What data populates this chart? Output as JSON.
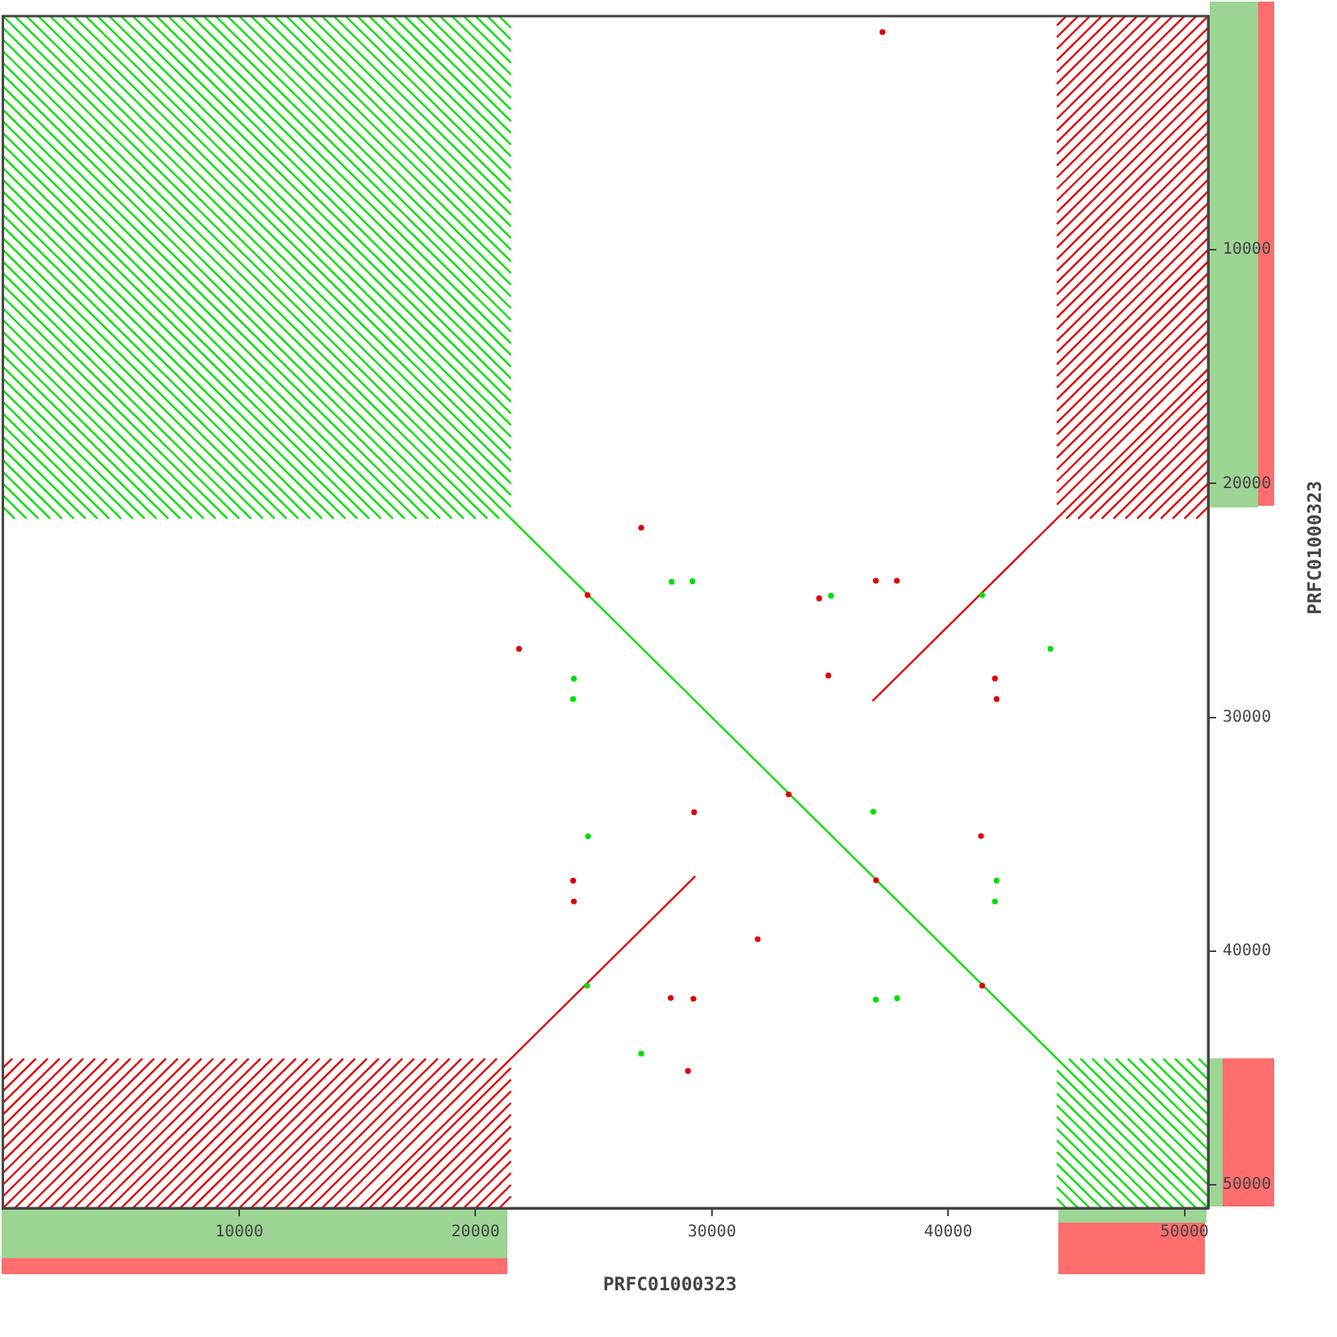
{
  "chart_data": {
    "type": "line",
    "xlabel": "PRFC01000323",
    "ylabel": "PRFC01000323",
    "xlim": [
      0,
      51000
    ],
    "ylim": [
      51000,
      0
    ],
    "xticks": [
      10000,
      20000,
      30000,
      40000,
      50000
    ],
    "yticks": [
      10000,
      20000,
      30000,
      40000,
      50000
    ],
    "series": [
      {
        "type": "scatter",
        "marker": "circle",
        "color": "#00e000",
        "x": [
          28300,
          29180,
          35040,
          41440,
          44330,
          24160,
          24130,
          36830,
          24760,
          42050,
          41980,
          24720,
          36940,
          37840,
          27010
        ],
        "values": [
          24200,
          24180,
          24800,
          24770,
          27070,
          28350,
          29220,
          34040,
          35090,
          36990,
          37880,
          41480,
          42080,
          42020,
          44390
        ]
      },
      {
        "type": "scatter",
        "marker": "circle",
        "color": "#e00000",
        "x": [
          27010,
          24740,
          34540,
          36940,
          37830,
          21840,
          34930,
          41980,
          42050,
          33250,
          29250,
          41390,
          24130,
          24160,
          36950,
          31940,
          41440,
          28260,
          29220,
          28990,
          37220
        ],
        "values": [
          21890,
          24770,
          24910,
          24160,
          24160,
          27070,
          28210,
          28340,
          29220,
          33300,
          34060,
          35080,
          36990,
          37880,
          36970,
          39490,
          41480,
          42010,
          42040,
          45130,
          680
        ]
      },
      {
        "color": "#00e000",
        "x": [
          0,
          51000
        ],
        "values": [
          0,
          51000
        ]
      },
      {
        "color": "#e00000",
        "x": [
          15100,
          29300
        ],
        "values": [
          51000,
          36800
        ]
      },
      {
        "color": "#e00000",
        "x": [
          36800,
          51000
        ],
        "values": [
          29300,
          15100
        ]
      },
      {
        "color": "#00e000",
        "x": [
          21000,
          21500
        ],
        "values": [
          0,
          500
        ]
      },
      {
        "color": "#00e000",
        "x": [
          20500,
          21500
        ],
        "values": [
          0,
          1000
        ]
      },
      {
        "color": "#00e000",
        "x": [
          20000,
          21500
        ],
        "values": [
          0,
          1500
        ]
      },
      {
        "color": "#00e000",
        "x": [
          19500,
          21500
        ],
        "values": [
          0,
          2000
        ]
      },
      {
        "color": "#00e000",
        "x": [
          19000,
          21500
        ],
        "values": [
          0,
          2500
        ]
      },
      {
        "color": "#00e000",
        "x": [
          18500,
          21500
        ],
        "values": [
          0,
          3000
        ]
      },
      {
        "color": "#00e000",
        "x": [
          18000,
          21500
        ],
        "values": [
          0,
          3500
        ]
      },
      {
        "color": "#00e000",
        "x": [
          17500,
          21500
        ],
        "values": [
          0,
          4000
        ]
      },
      {
        "color": "#00e000",
        "x": [
          17000,
          21500
        ],
        "values": [
          0,
          4500
        ]
      },
      {
        "color": "#00e000",
        "x": [
          16500,
          21500
        ],
        "values": [
          0,
          5000
        ]
      },
      {
        "color": "#00e000",
        "x": [
          16000,
          21500
        ],
        "values": [
          0,
          5500
        ]
      },
      {
        "color": "#00e000",
        "x": [
          15500,
          21500
        ],
        "values": [
          0,
          6000
        ]
      },
      {
        "color": "#00e000",
        "x": [
          15000,
          21500
        ],
        "values": [
          0,
          6500
        ]
      },
      {
        "color": "#00e000",
        "x": [
          14500,
          21500
        ],
        "values": [
          0,
          7000
        ]
      },
      {
        "color": "#00e000",
        "x": [
          14000,
          21500
        ],
        "values": [
          0,
          7500
        ]
      },
      {
        "color": "#00e000",
        "x": [
          13500,
          21500
        ],
        "values": [
          0,
          8000
        ]
      },
      {
        "color": "#00e000",
        "x": [
          13000,
          21500
        ],
        "values": [
          0,
          8500
        ]
      },
      {
        "color": "#00e000",
        "x": [
          12500,
          21500
        ],
        "values": [
          0,
          9000
        ]
      },
      {
        "color": "#00e000",
        "x": [
          12000,
          21500
        ],
        "values": [
          0,
          9500
        ]
      },
      {
        "color": "#00e000",
        "x": [
          11500,
          21500
        ],
        "values": [
          0,
          10000
        ]
      },
      {
        "color": "#00e000",
        "x": [
          11000,
          21500
        ],
        "values": [
          0,
          10500
        ]
      },
      {
        "color": "#00e000",
        "x": [
          10500,
          21500
        ],
        "values": [
          0,
          11000
        ]
      },
      {
        "color": "#00e000",
        "x": [
          10000,
          21500
        ],
        "values": [
          0,
          11500
        ]
      },
      {
        "color": "#00e000",
        "x": [
          9500,
          21500
        ],
        "values": [
          0,
          12000
        ]
      },
      {
        "color": "#00e000",
        "x": [
          9000,
          21500
        ],
        "values": [
          0,
          12500
        ]
      },
      {
        "color": "#00e000",
        "x": [
          8500,
          21500
        ],
        "values": [
          0,
          13000
        ]
      },
      {
        "color": "#00e000",
        "x": [
          8000,
          21500
        ],
        "values": [
          0,
          13500
        ]
      },
      {
        "color": "#00e000",
        "x": [
          7500,
          21500
        ],
        "values": [
          0,
          14000
        ]
      },
      {
        "color": "#00e000",
        "x": [
          7000,
          21500
        ],
        "values": [
          0,
          14500
        ]
      },
      {
        "color": "#00e000",
        "x": [
          6500,
          21500
        ],
        "values": [
          0,
          15000
        ]
      },
      {
        "color": "#00e000",
        "x": [
          6000,
          21500
        ],
        "values": [
          0,
          15500
        ]
      },
      {
        "color": "#00e000",
        "x": [
          5500,
          21500
        ],
        "values": [
          0,
          16000
        ]
      },
      {
        "color": "#00e000",
        "x": [
          5000,
          21500
        ],
        "values": [
          0,
          16500
        ]
      },
      {
        "color": "#00e000",
        "x": [
          4500,
          21500
        ],
        "values": [
          0,
          17000
        ]
      },
      {
        "color": "#00e000",
        "x": [
          4000,
          21500
        ],
        "values": [
          0,
          17500
        ]
      },
      {
        "color": "#00e000",
        "x": [
          3500,
          21500
        ],
        "values": [
          0,
          18000
        ]
      },
      {
        "color": "#00e000",
        "x": [
          3000,
          21500
        ],
        "values": [
          0,
          18500
        ]
      },
      {
        "color": "#00e000",
        "x": [
          2500,
          21500
        ],
        "values": [
          0,
          19000
        ]
      },
      {
        "color": "#00e000",
        "x": [
          2000,
          21500
        ],
        "values": [
          0,
          19500
        ]
      },
      {
        "color": "#00e000",
        "x": [
          1500,
          21500
        ],
        "values": [
          0,
          20000
        ]
      },
      {
        "color": "#00e000",
        "x": [
          1000,
          21500
        ],
        "values": [
          0,
          20500
        ]
      },
      {
        "color": "#00e000",
        "x": [
          500,
          21500
        ],
        "values": [
          0,
          21000
        ]
      },
      {
        "color": "#00e000",
        "x": [
          0,
          21000
        ],
        "values": [
          500,
          21500
        ]
      },
      {
        "color": "#00e000",
        "x": [
          0,
          20500
        ],
        "values": [
          1000,
          21500
        ]
      },
      {
        "color": "#00e000",
        "x": [
          0,
          20000
        ],
        "values": [
          1500,
          21500
        ]
      },
      {
        "color": "#00e000",
        "x": [
          0,
          19500
        ],
        "values": [
          2000,
          21500
        ]
      },
      {
        "color": "#00e000",
        "x": [
          0,
          19000
        ],
        "values": [
          2500,
          21500
        ]
      },
      {
        "color": "#00e000",
        "x": [
          0,
          18500
        ],
        "values": [
          3000,
          21500
        ]
      },
      {
        "color": "#00e000",
        "x": [
          0,
          18000
        ],
        "values": [
          3500,
          21500
        ]
      },
      {
        "color": "#00e000",
        "x": [
          0,
          17500
        ],
        "values": [
          4000,
          21500
        ]
      },
      {
        "color": "#00e000",
        "x": [
          0,
          17000
        ],
        "values": [
          4500,
          21500
        ]
      },
      {
        "color": "#00e000",
        "x": [
          0,
          16500
        ],
        "values": [
          5000,
          21500
        ]
      },
      {
        "color": "#00e000",
        "x": [
          0,
          16000
        ],
        "values": [
          5500,
          21500
        ]
      },
      {
        "color": "#00e000",
        "x": [
          0,
          15500
        ],
        "values": [
          6000,
          21500
        ]
      },
      {
        "color": "#00e000",
        "x": [
          0,
          15000
        ],
        "values": [
          6500,
          21500
        ]
      },
      {
        "color": "#00e000",
        "x": [
          0,
          14500
        ],
        "values": [
          7000,
          21500
        ]
      },
      {
        "color": "#00e000",
        "x": [
          0,
          14000
        ],
        "values": [
          7500,
          21500
        ]
      },
      {
        "color": "#00e000",
        "x": [
          0,
          13500
        ],
        "values": [
          8000,
          21500
        ]
      },
      {
        "color": "#00e000",
        "x": [
          0,
          13000
        ],
        "values": [
          8500,
          21500
        ]
      },
      {
        "color": "#00e000",
        "x": [
          0,
          12500
        ],
        "values": [
          9000,
          21500
        ]
      },
      {
        "color": "#00e000",
        "x": [
          0,
          12000
        ],
        "values": [
          9500,
          21500
        ]
      },
      {
        "color": "#00e000",
        "x": [
          0,
          11500
        ],
        "values": [
          10000,
          21500
        ]
      },
      {
        "color": "#00e000",
        "x": [
          0,
          11000
        ],
        "values": [
          10500,
          21500
        ]
      },
      {
        "color": "#00e000",
        "x": [
          0,
          10500
        ],
        "values": [
          11000,
          21500
        ]
      },
      {
        "color": "#00e000",
        "x": [
          0,
          10000
        ],
        "values": [
          11500,
          21500
        ]
      },
      {
        "color": "#00e000",
        "x": [
          0,
          9500
        ],
        "values": [
          12000,
          21500
        ]
      },
      {
        "color": "#00e000",
        "x": [
          0,
          9000
        ],
        "values": [
          12500,
          21500
        ]
      },
      {
        "color": "#00e000",
        "x": [
          0,
          8500
        ],
        "values": [
          13000,
          21500
        ]
      },
      {
        "color": "#00e000",
        "x": [
          0,
          8000
        ],
        "values": [
          13500,
          21500
        ]
      },
      {
        "color": "#00e000",
        "x": [
          0,
          7500
        ],
        "values": [
          14000,
          21500
        ]
      },
      {
        "color": "#00e000",
        "x": [
          0,
          7000
        ],
        "values": [
          14500,
          21500
        ]
      },
      {
        "color": "#00e000",
        "x": [
          0,
          6500
        ],
        "values": [
          15000,
          21500
        ]
      },
      {
        "color": "#00e000",
        "x": [
          0,
          6000
        ],
        "values": [
          15500,
          21500
        ]
      },
      {
        "color": "#00e000",
        "x": [
          0,
          5500
        ],
        "values": [
          16000,
          21500
        ]
      },
      {
        "color": "#00e000",
        "x": [
          0,
          5000
        ],
        "values": [
          16500,
          21500
        ]
      },
      {
        "color": "#00e000",
        "x": [
          0,
          4500
        ],
        "values": [
          17000,
          21500
        ]
      },
      {
        "color": "#00e000",
        "x": [
          0,
          4000
        ],
        "values": [
          17500,
          21500
        ]
      },
      {
        "color": "#00e000",
        "x": [
          0,
          3500
        ],
        "values": [
          18000,
          21500
        ]
      },
      {
        "color": "#00e000",
        "x": [
          0,
          3000
        ],
        "values": [
          18500,
          21500
        ]
      },
      {
        "color": "#00e000",
        "x": [
          0,
          2500
        ],
        "values": [
          19000,
          21500
        ]
      },
      {
        "color": "#00e000",
        "x": [
          0,
          2000
        ],
        "values": [
          19500,
          21500
        ]
      },
      {
        "color": "#00e000",
        "x": [
          0,
          1500
        ],
        "values": [
          20000,
          21500
        ]
      },
      {
        "color": "#00e000",
        "x": [
          0,
          1000
        ],
        "values": [
          20500,
          21500
        ]
      },
      {
        "color": "#00e000",
        "x": [
          0,
          500
        ],
        "values": [
          21000,
          21500
        ]
      },
      {
        "color": "#00e000",
        "x": [
          50600,
          51000
        ],
        "values": [
          44600,
          45000
        ]
      },
      {
        "color": "#00e000",
        "x": [
          50100,
          51000
        ],
        "values": [
          44600,
          45500
        ]
      },
      {
        "color": "#00e000",
        "x": [
          49600,
          51000
        ],
        "values": [
          44600,
          46000
        ]
      },
      {
        "color": "#00e000",
        "x": [
          49100,
          51000
        ],
        "values": [
          44600,
          46500
        ]
      },
      {
        "color": "#00e000",
        "x": [
          48600,
          51000
        ],
        "values": [
          44600,
          47000
        ]
      },
      {
        "color": "#00e000",
        "x": [
          48100,
          51000
        ],
        "values": [
          44600,
          47500
        ]
      },
      {
        "color": "#00e000",
        "x": [
          47600,
          51000
        ],
        "values": [
          44600,
          48000
        ]
      },
      {
        "color": "#00e000",
        "x": [
          47100,
          51000
        ],
        "values": [
          44600,
          48500
        ]
      },
      {
        "color": "#00e000",
        "x": [
          46600,
          51000
        ],
        "values": [
          44600,
          49000
        ]
      },
      {
        "color": "#00e000",
        "x": [
          46100,
          51000
        ],
        "values": [
          44600,
          49500
        ]
      },
      {
        "color": "#00e000",
        "x": [
          45600,
          51000
        ],
        "values": [
          44600,
          50000
        ]
      },
      {
        "color": "#00e000",
        "x": [
          45100,
          51000
        ],
        "values": [
          44600,
          50500
        ]
      },
      {
        "color": "#00e000",
        "x": [
          44600,
          50500
        ],
        "values": [
          45100,
          51000
        ]
      },
      {
        "color": "#00e000",
        "x": [
          44600,
          50000
        ],
        "values": [
          45600,
          51000
        ]
      },
      {
        "color": "#00e000",
        "x": [
          44600,
          49500
        ],
        "values": [
          46100,
          51000
        ]
      },
      {
        "color": "#00e000",
        "x": [
          44600,
          49000
        ],
        "values": [
          46600,
          51000
        ]
      },
      {
        "color": "#00e000",
        "x": [
          44600,
          48500
        ],
        "values": [
          47100,
          51000
        ]
      },
      {
        "color": "#00e000",
        "x": [
          44600,
          48000
        ],
        "values": [
          47600,
          51000
        ]
      },
      {
        "color": "#00e000",
        "x": [
          44600,
          47500
        ],
        "values": [
          48100,
          51000
        ]
      },
      {
        "color": "#00e000",
        "x": [
          44600,
          47000
        ],
        "values": [
          48600,
          51000
        ]
      },
      {
        "color": "#00e000",
        "x": [
          44600,
          46500
        ],
        "values": [
          49100,
          51000
        ]
      },
      {
        "color": "#00e000",
        "x": [
          44600,
          46000
        ],
        "values": [
          49600,
          51000
        ]
      },
      {
        "color": "#00e000",
        "x": [
          44600,
          45500
        ],
        "values": [
          50100,
          51000
        ]
      },
      {
        "color": "#00e000",
        "x": [
          44600,
          45000
        ],
        "values": [
          50600,
          51000
        ]
      },
      {
        "color": "#e00000",
        "x": [
          44600,
          45000
        ],
        "values": [
          400,
          0
        ]
      },
      {
        "color": "#e00000",
        "x": [
          44600,
          45500
        ],
        "values": [
          900,
          0
        ]
      },
      {
        "color": "#e00000",
        "x": [
          44600,
          46000
        ],
        "values": [
          1400,
          0
        ]
      },
      {
        "color": "#e00000",
        "x": [
          44600,
          46500
        ],
        "values": [
          1900,
          0
        ]
      },
      {
        "color": "#e00000",
        "x": [
          44600,
          47000
        ],
        "values": [
          2400,
          0
        ]
      },
      {
        "color": "#e00000",
        "x": [
          44600,
          47500
        ],
        "values": [
          2900,
          0
        ]
      },
      {
        "color": "#e00000",
        "x": [
          44600,
          48000
        ],
        "values": [
          3400,
          0
        ]
      },
      {
        "color": "#e00000",
        "x": [
          44600,
          48500
        ],
        "values": [
          3900,
          0
        ]
      },
      {
        "color": "#e00000",
        "x": [
          44600,
          49000
        ],
        "values": [
          4400,
          0
        ]
      },
      {
        "color": "#e00000",
        "x": [
          44600,
          49500
        ],
        "values": [
          4900,
          0
        ]
      },
      {
        "color": "#e00000",
        "x": [
          44600,
          50000
        ],
        "values": [
          5400,
          0
        ]
      },
      {
        "color": "#e00000",
        "x": [
          44600,
          50500
        ],
        "values": [
          5900,
          0
        ]
      },
      {
        "color": "#e00000",
        "x": [
          44600,
          51000
        ],
        "values": [
          6400,
          0
        ]
      },
      {
        "color": "#e00000",
        "x": [
          44600,
          51000
        ],
        "values": [
          6900,
          500
        ]
      },
      {
        "color": "#e00000",
        "x": [
          44600,
          51000
        ],
        "values": [
          7400,
          1000
        ]
      },
      {
        "color": "#e00000",
        "x": [
          44600,
          51000
        ],
        "values": [
          7900,
          1500
        ]
      },
      {
        "color": "#e00000",
        "x": [
          44600,
          51000
        ],
        "values": [
          8400,
          2000
        ]
      },
      {
        "color": "#e00000",
        "x": [
          44600,
          51000
        ],
        "values": [
          8900,
          2500
        ]
      },
      {
        "color": "#e00000",
        "x": [
          44600,
          51000
        ],
        "values": [
          9400,
          3000
        ]
      },
      {
        "color": "#e00000",
        "x": [
          44600,
          51000
        ],
        "values": [
          9900,
          3500
        ]
      },
      {
        "color": "#e00000",
        "x": [
          44600,
          51000
        ],
        "values": [
          10400,
          4000
        ]
      },
      {
        "color": "#e00000",
        "x": [
          44600,
          51000
        ],
        "values": [
          10900,
          4500
        ]
      },
      {
        "color": "#e00000",
        "x": [
          44600,
          51000
        ],
        "values": [
          11400,
          5000
        ]
      },
      {
        "color": "#e00000",
        "x": [
          44600,
          51000
        ],
        "values": [
          11900,
          5500
        ]
      },
      {
        "color": "#e00000",
        "x": [
          44600,
          51000
        ],
        "values": [
          12400,
          6000
        ]
      },
      {
        "color": "#e00000",
        "x": [
          44600,
          51000
        ],
        "values": [
          12900,
          6500
        ]
      },
      {
        "color": "#e00000",
        "x": [
          44600,
          51000
        ],
        "values": [
          13400,
          7000
        ]
      },
      {
        "color": "#e00000",
        "x": [
          44600,
          51000
        ],
        "values": [
          13900,
          7500
        ]
      },
      {
        "color": "#e00000",
        "x": [
          44600,
          51000
        ],
        "values": [
          14400,
          8000
        ]
      },
      {
        "color": "#e00000",
        "x": [
          44600,
          51000
        ],
        "values": [
          14900,
          8500
        ]
      },
      {
        "color": "#e00000",
        "x": [
          44600,
          51000
        ],
        "values": [
          15400,
          9000
        ]
      },
      {
        "color": "#e00000",
        "x": [
          44600,
          51000
        ],
        "values": [
          15900,
          9500
        ]
      },
      {
        "color": "#e00000",
        "x": [
          44600,
          51000
        ],
        "values": [
          16400,
          10000
        ]
      },
      {
        "color": "#e00000",
        "x": [
          44600,
          51000
        ],
        "values": [
          16900,
          10500
        ]
      },
      {
        "color": "#e00000",
        "x": [
          44600,
          51000
        ],
        "values": [
          17400,
          11000
        ]
      },
      {
        "color": "#e00000",
        "x": [
          44600,
          51000
        ],
        "values": [
          17900,
          11500
        ]
      },
      {
        "color": "#e00000",
        "x": [
          44600,
          51000
        ],
        "values": [
          18400,
          12000
        ]
      },
      {
        "color": "#e00000",
        "x": [
          44600,
          51000
        ],
        "values": [
          18900,
          12500
        ]
      },
      {
        "color": "#e00000",
        "x": [
          44600,
          51000
        ],
        "values": [
          19400,
          13000
        ]
      },
      {
        "color": "#e00000",
        "x": [
          44600,
          51000
        ],
        "values": [
          19900,
          13500
        ]
      },
      {
        "color": "#e00000",
        "x": [
          44600,
          51000
        ],
        "values": [
          20400,
          14000
        ]
      },
      {
        "color": "#e00000",
        "x": [
          44600,
          51000
        ],
        "values": [
          20900,
          14500
        ]
      },
      {
        "color": "#e00000",
        "x": [
          45000,
          51000
        ],
        "values": [
          21500,
          15500
        ]
      },
      {
        "color": "#e00000",
        "x": [
          45500,
          51000
        ],
        "values": [
          21500,
          16000
        ]
      },
      {
        "color": "#e00000",
        "x": [
          46000,
          51000
        ],
        "values": [
          21500,
          16500
        ]
      },
      {
        "color": "#e00000",
        "x": [
          46500,
          51000
        ],
        "values": [
          21500,
          17000
        ]
      },
      {
        "color": "#e00000",
        "x": [
          47000,
          51000
        ],
        "values": [
          21500,
          17500
        ]
      },
      {
        "color": "#e00000",
        "x": [
          47500,
          51000
        ],
        "values": [
          21500,
          18000
        ]
      },
      {
        "color": "#e00000",
        "x": [
          48000,
          51000
        ],
        "values": [
          21500,
          18500
        ]
      },
      {
        "color": "#e00000",
        "x": [
          48500,
          51000
        ],
        "values": [
          21500,
          19000
        ]
      },
      {
        "color": "#e00000",
        "x": [
          49000,
          51000
        ],
        "values": [
          21500,
          19500
        ]
      },
      {
        "color": "#e00000",
        "x": [
          49500,
          51000
        ],
        "values": [
          21500,
          20000
        ]
      },
      {
        "color": "#e00000",
        "x": [
          50000,
          51000
        ],
        "values": [
          21500,
          20500
        ]
      },
      {
        "color": "#e00000",
        "x": [
          50500,
          51000
        ],
        "values": [
          21500,
          21000
        ]
      },
      {
        "color": "#e00000",
        "x": [
          0,
          400
        ],
        "values": [
          45000,
          44600
        ]
      },
      {
        "color": "#e00000",
        "x": [
          0,
          900
        ],
        "values": [
          45500,
          44600
        ]
      },
      {
        "color": "#e00000",
        "x": [
          0,
          1400
        ],
        "values": [
          46000,
          44600
        ]
      },
      {
        "color": "#e00000",
        "x": [
          0,
          1900
        ],
        "values": [
          46500,
          44600
        ]
      },
      {
        "color": "#e00000",
        "x": [
          0,
          2400
        ],
        "values": [
          47000,
          44600
        ]
      },
      {
        "color": "#e00000",
        "x": [
          0,
          2900
        ],
        "values": [
          47500,
          44600
        ]
      },
      {
        "color": "#e00000",
        "x": [
          0,
          3400
        ],
        "values": [
          48000,
          44600
        ]
      },
      {
        "color": "#e00000",
        "x": [
          0,
          3900
        ],
        "values": [
          48500,
          44600
        ]
      },
      {
        "color": "#e00000",
        "x": [
          0,
          4400
        ],
        "values": [
          49000,
          44600
        ]
      },
      {
        "color": "#e00000",
        "x": [
          0,
          4900
        ],
        "values": [
          49500,
          44600
        ]
      },
      {
        "color": "#e00000",
        "x": [
          0,
          5400
        ],
        "values": [
          50000,
          44600
        ]
      },
      {
        "color": "#e00000",
        "x": [
          0,
          5900
        ],
        "values": [
          50500,
          44600
        ]
      },
      {
        "color": "#e00000",
        "x": [
          0,
          6400
        ],
        "values": [
          51000,
          44600
        ]
      },
      {
        "color": "#e00000",
        "x": [
          500,
          6900
        ],
        "values": [
          51000,
          44600
        ]
      },
      {
        "color": "#e00000",
        "x": [
          1000,
          7400
        ],
        "values": [
          51000,
          44600
        ]
      },
      {
        "color": "#e00000",
        "x": [
          1500,
          7900
        ],
        "values": [
          51000,
          44600
        ]
      },
      {
        "color": "#e00000",
        "x": [
          2000,
          8400
        ],
        "values": [
          51000,
          44600
        ]
      },
      {
        "color": "#e00000",
        "x": [
          2500,
          8900
        ],
        "values": [
          51000,
          44600
        ]
      },
      {
        "color": "#e00000",
        "x": [
          3000,
          9400
        ],
        "values": [
          51000,
          44600
        ]
      },
      {
        "color": "#e00000",
        "x": [
          3500,
          9900
        ],
        "values": [
          51000,
          44600
        ]
      },
      {
        "color": "#e00000",
        "x": [
          4000,
          10400
        ],
        "values": [
          51000,
          44600
        ]
      },
      {
        "color": "#e00000",
        "x": [
          4500,
          10900
        ],
        "values": [
          51000,
          44600
        ]
      },
      {
        "color": "#e00000",
        "x": [
          5000,
          11400
        ],
        "values": [
          51000,
          44600
        ]
      },
      {
        "color": "#e00000",
        "x": [
          5500,
          11900
        ],
        "values": [
          51000,
          44600
        ]
      },
      {
        "color": "#e00000",
        "x": [
          6000,
          12400
        ],
        "values": [
          51000,
          44600
        ]
      },
      {
        "color": "#e00000",
        "x": [
          6500,
          12900
        ],
        "values": [
          51000,
          44600
        ]
      },
      {
        "color": "#e00000",
        "x": [
          7000,
          13400
        ],
        "values": [
          51000,
          44600
        ]
      },
      {
        "color": "#e00000",
        "x": [
          7500,
          13900
        ],
        "values": [
          51000,
          44600
        ]
      },
      {
        "color": "#e00000",
        "x": [
          8000,
          14400
        ],
        "values": [
          51000,
          44600
        ]
      },
      {
        "color": "#e00000",
        "x": [
          8500,
          14900
        ],
        "values": [
          51000,
          44600
        ]
      },
      {
        "color": "#e00000",
        "x": [
          9000,
          15400
        ],
        "values": [
          51000,
          44600
        ]
      },
      {
        "color": "#e00000",
        "x": [
          9500,
          15900
        ],
        "values": [
          51000,
          44600
        ]
      },
      {
        "color": "#e00000",
        "x": [
          10000,
          16400
        ],
        "values": [
          51000,
          44600
        ]
      },
      {
        "color": "#e00000",
        "x": [
          10500,
          16900
        ],
        "values": [
          51000,
          44600
        ]
      },
      {
        "color": "#e00000",
        "x": [
          11000,
          17400
        ],
        "values": [
          51000,
          44600
        ]
      },
      {
        "color": "#e00000",
        "x": [
          11500,
          17900
        ],
        "values": [
          51000,
          44600
        ]
      },
      {
        "color": "#e00000",
        "x": [
          12000,
          18400
        ],
        "values": [
          51000,
          44600
        ]
      },
      {
        "color": "#e00000",
        "x": [
          12500,
          18900
        ],
        "values": [
          51000,
          44600
        ]
      },
      {
        "color": "#e00000",
        "x": [
          13000,
          19400
        ],
        "values": [
          51000,
          44600
        ]
      },
      {
        "color": "#e00000",
        "x": [
          13500,
          19900
        ],
        "values": [
          51000,
          44600
        ]
      },
      {
        "color": "#e00000",
        "x": [
          14000,
          20400
        ],
        "values": [
          51000,
          44600
        ]
      },
      {
        "color": "#e00000",
        "x": [
          14500,
          20900
        ],
        "values": [
          51000,
          44600
        ]
      },
      {
        "color": "#e00000",
        "x": [
          15500,
          21500
        ],
        "values": [
          51000,
          45000
        ]
      },
      {
        "color": "#e00000",
        "x": [
          16000,
          21500
        ],
        "values": [
          51000,
          45500
        ]
      },
      {
        "color": "#e00000",
        "x": [
          16500,
          21500
        ],
        "values": [
          51000,
          46000
        ]
      },
      {
        "color": "#e00000",
        "x": [
          17000,
          21500
        ],
        "values": [
          51000,
          46500
        ]
      },
      {
        "color": "#e00000",
        "x": [
          17500,
          21500
        ],
        "values": [
          51000,
          47000
        ]
      },
      {
        "color": "#e00000",
        "x": [
          18000,
          21500
        ],
        "values": [
          51000,
          47500
        ]
      },
      {
        "color": "#e00000",
        "x": [
          18500,
          21500
        ],
        "values": [
          51000,
          48000
        ]
      },
      {
        "color": "#e00000",
        "x": [
          19000,
          21500
        ],
        "values": [
          51000,
          48500
        ]
      },
      {
        "color": "#e00000",
        "x": [
          19500,
          21500
        ],
        "values": [
          51000,
          49000
        ]
      },
      {
        "color": "#e00000",
        "x": [
          20000,
          21500
        ],
        "values": [
          51000,
          49500
        ]
      },
      {
        "color": "#e00000",
        "x": [
          20500,
          21500
        ],
        "values": [
          51000,
          50000
        ]
      },
      {
        "color": "#e00000",
        "x": [
          21000,
          21500
        ],
        "values": [
          51000,
          50500
        ]
      }
    ]
  }
}
